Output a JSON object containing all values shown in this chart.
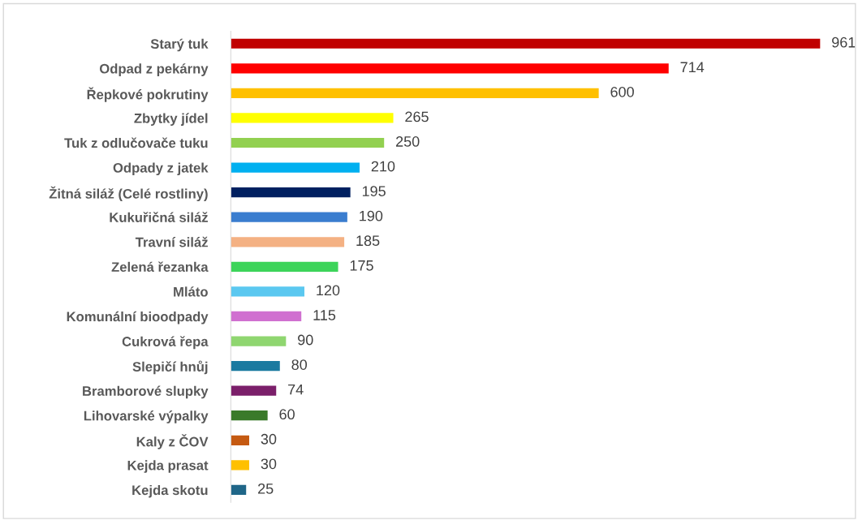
{
  "chart_data": {
    "type": "bar",
    "orientation": "horizontal",
    "data_labels": true,
    "categories": [
      "Starý tuk",
      "Odpad z pekárny",
      "Řepkové pokrutiny",
      "Zbytky jídel",
      "Tuk z odlučovače tuku",
      "Odpady z jatek",
      "Žitná siláž (Celé rostliny)",
      "Kukuřičná siláž",
      "Travní siláž",
      "Zelená řezanka",
      "Mláto",
      "Komunální bioodpady",
      "Cukrová řepa",
      "Slepičí hnůj",
      "Bramborové slupky",
      "Lihovarské výpalky",
      "Kaly z ČOV",
      "Kejda prasat",
      "Kejda skotu"
    ],
    "values": [
      961,
      714,
      600,
      265,
      250,
      210,
      195,
      190,
      185,
      175,
      120,
      115,
      90,
      80,
      74,
      60,
      30,
      30,
      25
    ],
    "colors": [
      "#c00000",
      "#ff0000",
      "#ffc000",
      "#ffff00",
      "#92d050",
      "#00b0f0",
      "#002060",
      "#3a7dcf",
      "#f4b183",
      "#3dd45a",
      "#5bc8f0",
      "#d070d0",
      "#8fd670",
      "#1b7aa0",
      "#7b1f6a",
      "#3a7a2a",
      "#c55a11",
      "#ffc000",
      "#1f6688"
    ],
    "tick_labels": "y"
  }
}
